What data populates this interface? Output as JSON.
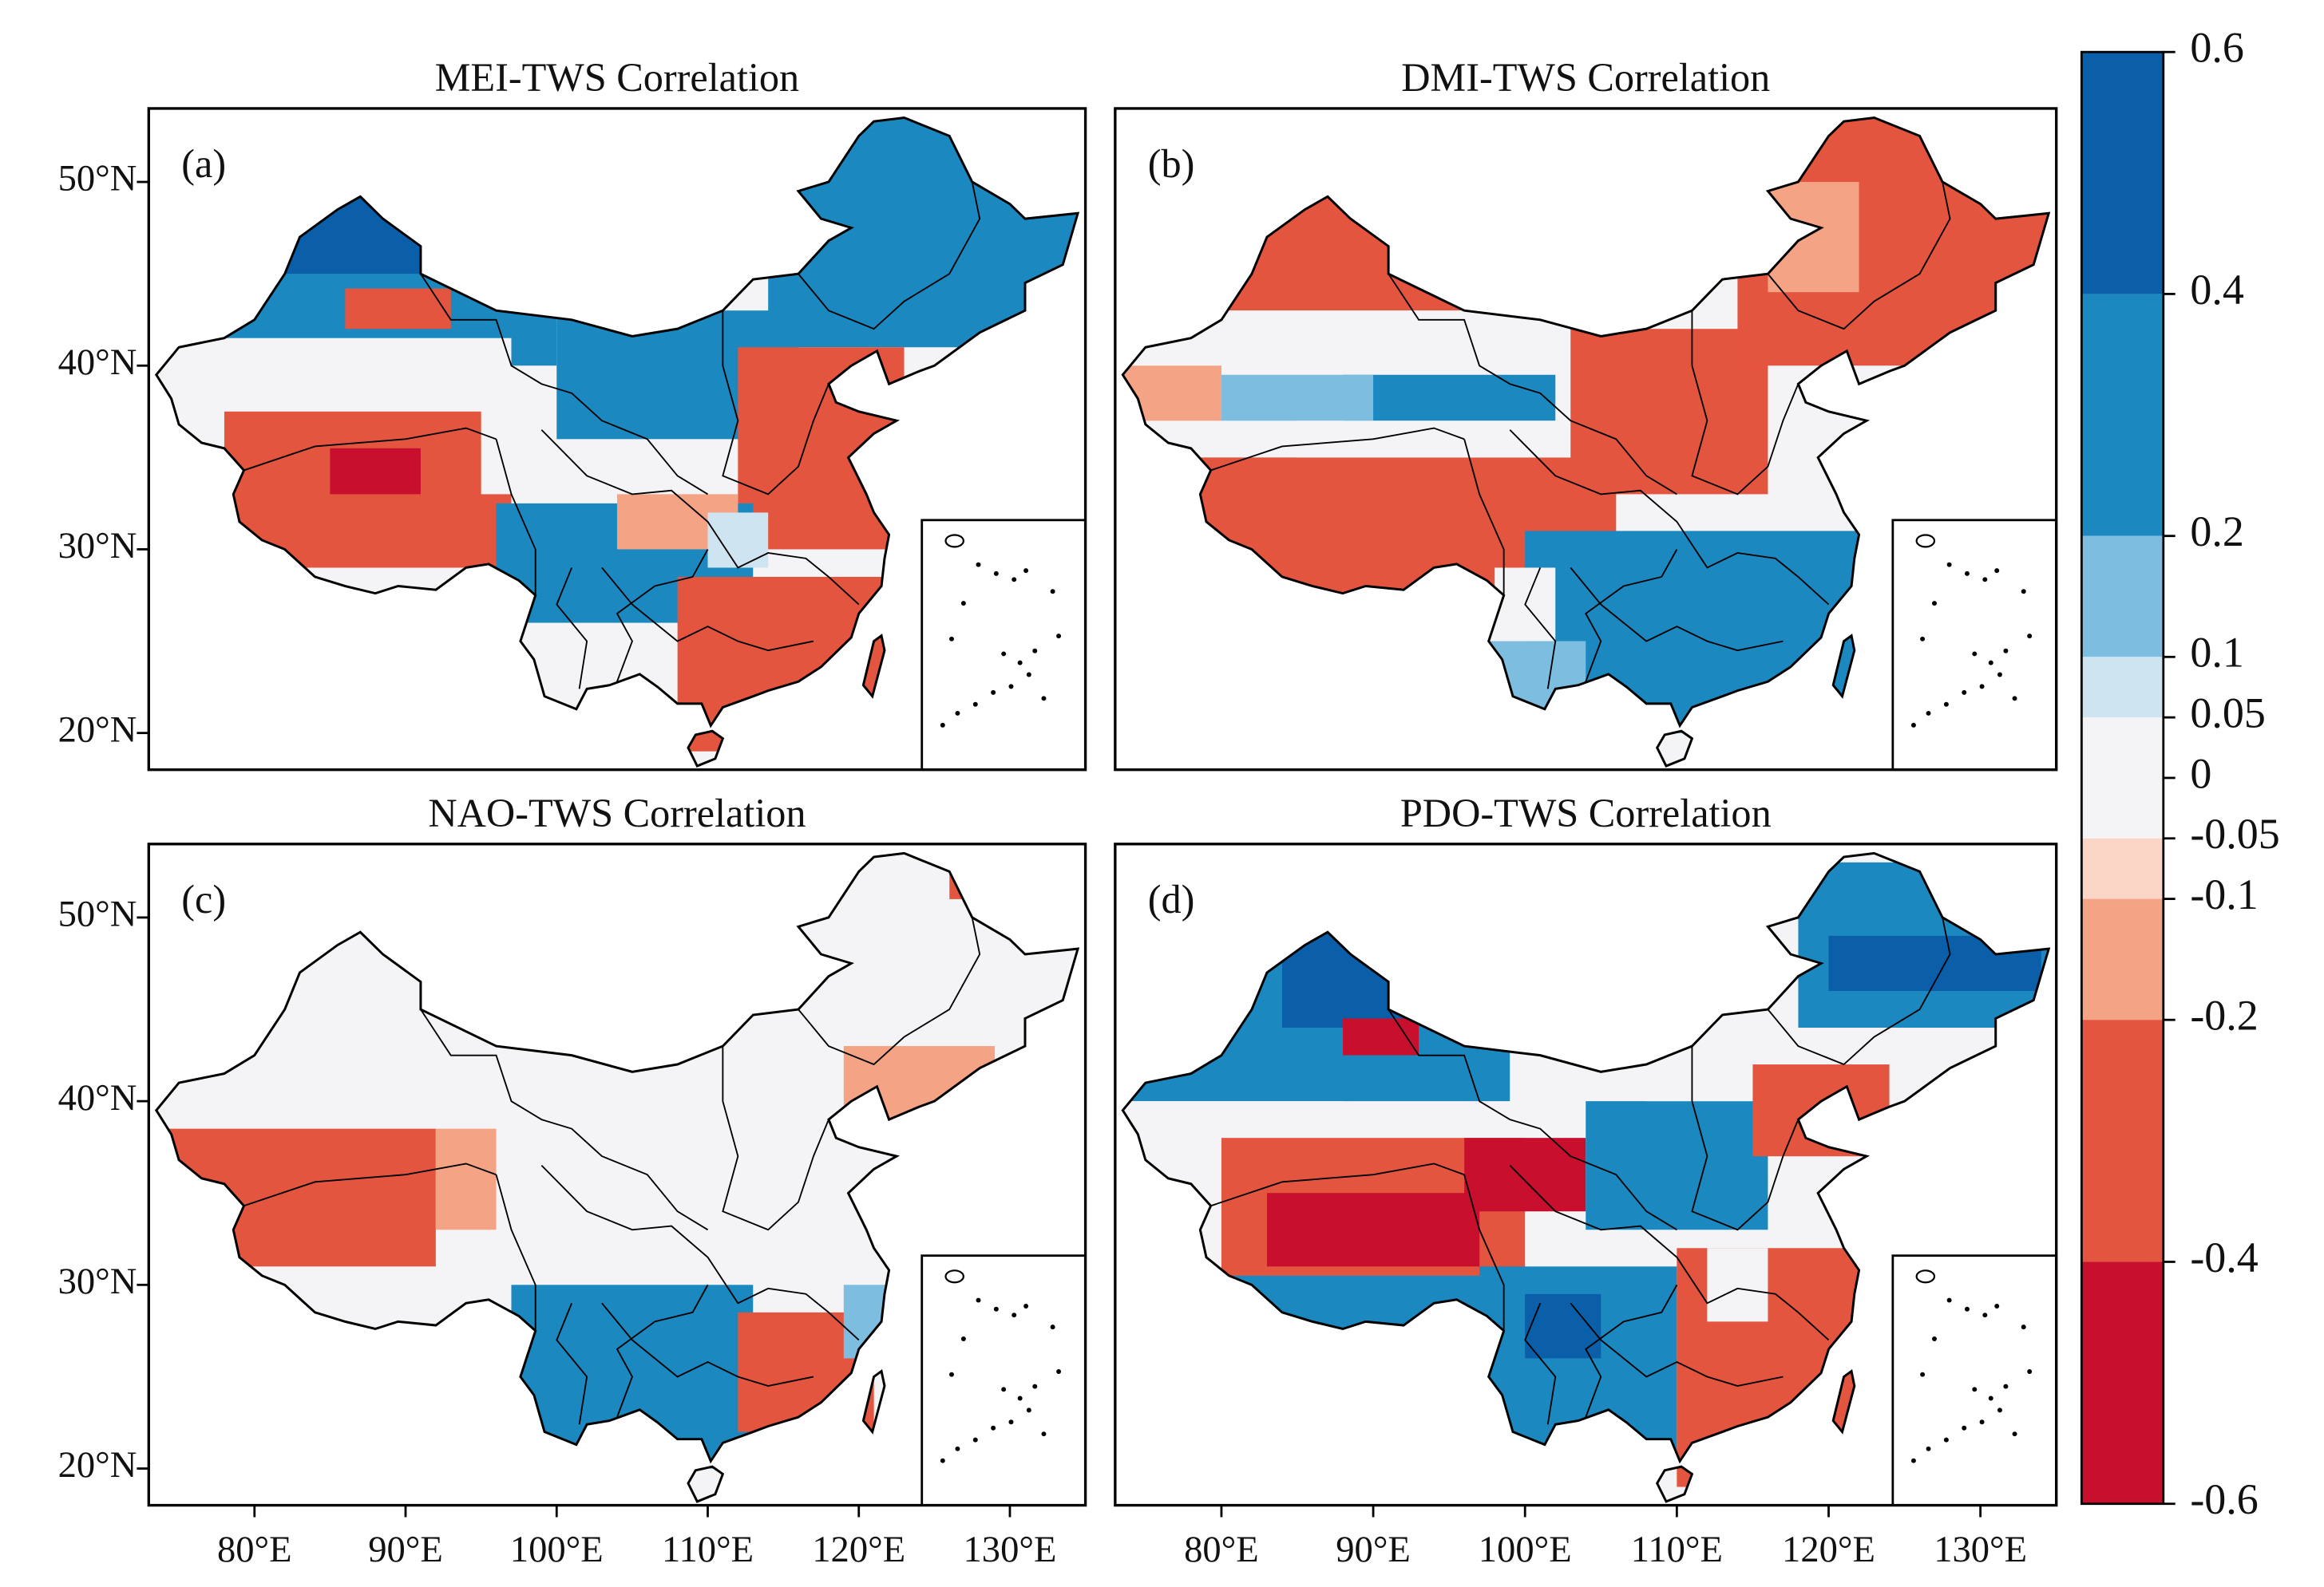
{
  "figure": {
    "panels": [
      {
        "title": "MEI-TWS Correlation",
        "label": "(a)"
      },
      {
        "title": "DMI-TWS Correlation",
        "label": "(b)"
      },
      {
        "title": "NAO-TWS Correlation",
        "label": "(c)"
      },
      {
        "title": "PDO-TWS Correlation",
        "label": "(d)"
      }
    ],
    "map": {
      "xlim": [
        73,
        135
      ],
      "ylim": [
        18,
        54
      ],
      "xticks": [
        {
          "value": 80,
          "label": "80°E"
        },
        {
          "value": 90,
          "label": "90°E"
        },
        {
          "value": 100,
          "label": "100°E"
        },
        {
          "value": 110,
          "label": "110°E"
        },
        {
          "value": 120,
          "label": "120°E"
        },
        {
          "value": 130,
          "label": "130°E"
        }
      ],
      "yticks": [
        {
          "value": 20,
          "label": "20°N"
        },
        {
          "value": 30,
          "label": "30°N"
        },
        {
          "value": 40,
          "label": "40°N"
        },
        {
          "value": 50,
          "label": "50°N"
        }
      ]
    },
    "colorbar": {
      "lim": [
        -0.6,
        0.6
      ],
      "ticks": [
        0.6,
        0.4,
        0.2,
        0.1,
        0.05,
        0,
        -0.05,
        -0.1,
        -0.2,
        -0.4,
        -0.6
      ],
      "colors": [
        "#0b5ea8",
        "#1c88c0",
        "#7dbde0",
        "#cfe4f1",
        "#f4f4f6",
        "#f4f4f6",
        "#fbd5c5",
        "#f4a384",
        "#e4553f",
        "#c8102e"
      ]
    }
  }
}
